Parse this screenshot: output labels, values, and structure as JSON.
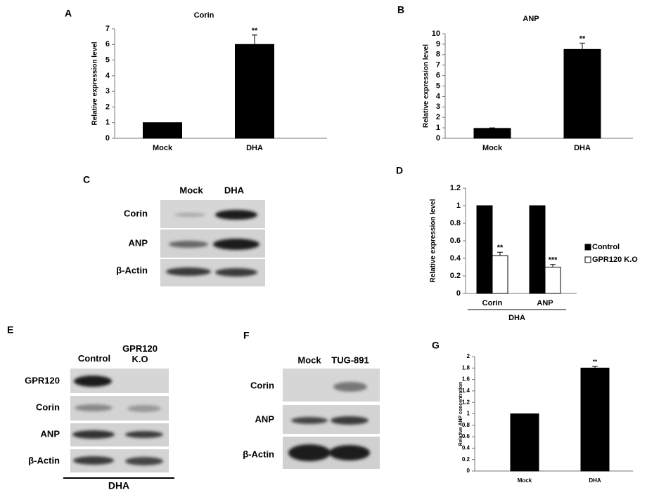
{
  "panel_labels": [
    "A",
    "B",
    "C",
    "D",
    "E",
    "F",
    "G"
  ],
  "chart_data": [
    {
      "type": "bar",
      "title": "Corin",
      "ylabel": "Relative expression level",
      "categories": [
        "Mock",
        "DHA"
      ],
      "values": [
        1,
        6
      ],
      "errors": [
        null,
        0.6
      ],
      "annotations": [
        null,
        "**"
      ],
      "color": "#000000",
      "ylim": [
        0,
        7
      ],
      "yticks": [
        0,
        1,
        2,
        3,
        4,
        5,
        6,
        7
      ]
    },
    {
      "type": "bar",
      "title": "ANP",
      "ylabel": "Relative expression level",
      "categories": [
        "Mock",
        "DHA"
      ],
      "values": [
        0.95,
        8.5
      ],
      "errors": [
        0.05,
        0.6
      ],
      "annotations": [
        null,
        "**"
      ],
      "color": "#000000",
      "ylim": [
        0,
        10
      ],
      "yticks": [
        0,
        1,
        2,
        3,
        4,
        5,
        6,
        7,
        8,
        9,
        10
      ]
    },
    {
      "type": "grouped_bar",
      "ylabel": "Relative expression level",
      "categories": [
        "Corin",
        "ANP"
      ],
      "group_label": "DHA",
      "series": [
        {
          "name": "Control",
          "color": "#000000",
          "values": [
            1,
            1
          ]
        },
        {
          "name": "GPR120 K.O",
          "color": "#ffffff",
          "values": [
            0.43,
            0.3
          ],
          "errors": [
            0.04,
            0.03
          ],
          "annotations": [
            "**",
            "***"
          ]
        }
      ],
      "ylim": [
        0,
        1.2
      ],
      "yticks": [
        0,
        0.2,
        0.4,
        0.6,
        0.8,
        1,
        1.2
      ],
      "legend": "right"
    },
    {
      "type": "bar",
      "ylabel": "Relative ANP concentration",
      "categories": [
        "Mock",
        "DHA"
      ],
      "values": [
        1,
        1.8
      ],
      "errors": [
        null,
        0.03
      ],
      "annotations": [
        null,
        "**"
      ],
      "color": "#000000",
      "ylim": [
        0,
        2
      ],
      "yticks": [
        0,
        0.2,
        0.4,
        0.6,
        0.8,
        1,
        1.2,
        1.4,
        1.6,
        1.8,
        2
      ]
    }
  ],
  "blots": [
    {
      "columns": [
        "Mock",
        "DHA"
      ],
      "rows": [
        "Corin",
        "ANP",
        "β-Actin"
      ]
    },
    {
      "columns": [
        "Control",
        "GPR120 K.O"
      ],
      "rows": [
        "GPR120",
        "Corin",
        "ANP",
        "β-Actin"
      ],
      "footer": "DHA"
    },
    {
      "columns": [
        "Mock",
        "TUG-891"
      ],
      "rows": [
        "Corin",
        "ANP",
        "β-Actin"
      ]
    }
  ]
}
